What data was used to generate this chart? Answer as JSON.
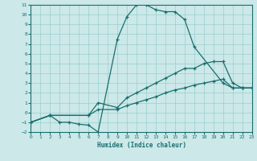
{
  "xlabel": "Humidex (Indice chaleur)",
  "xlim": [
    0,
    23
  ],
  "ylim": [
    -2,
    11
  ],
  "xticks": [
    0,
    1,
    2,
    3,
    4,
    5,
    6,
    7,
    8,
    9,
    10,
    11,
    12,
    13,
    14,
    15,
    16,
    17,
    18,
    19,
    20,
    21,
    22,
    23
  ],
  "yticks": [
    -2,
    -1,
    0,
    1,
    2,
    3,
    4,
    5,
    6,
    7,
    8,
    9,
    10,
    11
  ],
  "bg_color": "#cce8e8",
  "line_color": "#1a6e6e",
  "line1_x": [
    0,
    2,
    3,
    4,
    5,
    6,
    7,
    9,
    10,
    11,
    12,
    13,
    14,
    15,
    16,
    17,
    20,
    21,
    22,
    23
  ],
  "line1_y": [
    -1,
    -0.3,
    -1,
    -1,
    -1.2,
    -1.3,
    -2,
    7.5,
    9.8,
    11,
    11,
    10.5,
    10.3,
    10.3,
    9.5,
    6.7,
    3,
    2.5,
    2.5,
    2.5
  ],
  "line2_x": [
    0,
    2,
    6,
    7,
    9,
    10,
    11,
    12,
    13,
    14,
    15,
    16,
    17,
    18,
    19,
    20,
    21,
    22,
    23
  ],
  "line2_y": [
    -1,
    -0.3,
    -0.3,
    1.0,
    0.5,
    1.5,
    2.0,
    2.5,
    3.0,
    3.5,
    4.0,
    4.5,
    4.5,
    5.0,
    5.2,
    5.2,
    3.0,
    2.5,
    2.5
  ],
  "line3_x": [
    0,
    2,
    6,
    7,
    9,
    10,
    11,
    12,
    13,
    14,
    15,
    16,
    17,
    18,
    19,
    20,
    21,
    22,
    23
  ],
  "line3_y": [
    -1,
    -0.3,
    -0.3,
    0.3,
    0.3,
    0.7,
    1.0,
    1.3,
    1.6,
    2.0,
    2.3,
    2.5,
    2.8,
    3.0,
    3.2,
    3.4,
    2.5,
    2.5,
    2.5
  ]
}
